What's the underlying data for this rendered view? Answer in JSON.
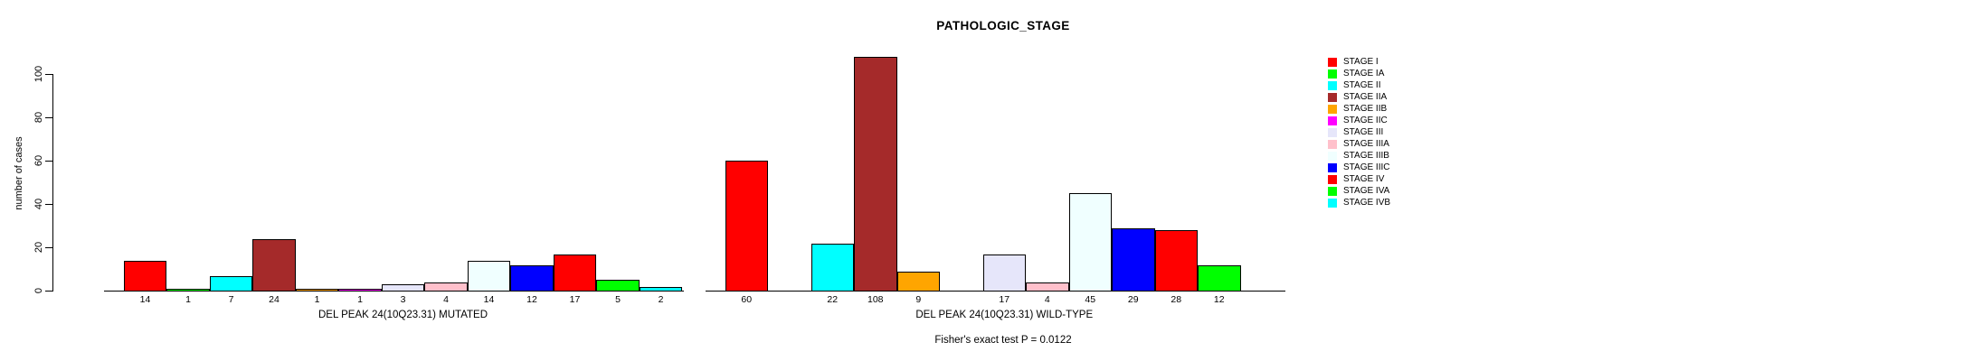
{
  "chart_data": {
    "type": "bar",
    "title": "PATHOLOGIC_STAGE",
    "ylabel": "number of cases",
    "ylim": [
      0,
      100
    ],
    "yticks": [
      0,
      20,
      40,
      60,
      80,
      100
    ],
    "annotation": "Fisher's exact test P = 0.0122",
    "grid": false,
    "legend_position": "right",
    "bar_value_labels_shown": true,
    "categories": [
      "STAGE I",
      "STAGE IA",
      "STAGE II",
      "STAGE IIA",
      "STAGE IIB",
      "STAGE IIC",
      "STAGE III",
      "STAGE IIIA",
      "STAGE IIIB",
      "STAGE IIIC",
      "STAGE IV",
      "STAGE IVA",
      "STAGE IVB"
    ],
    "colors": [
      "#FF0000",
      "#00FF00",
      "#00FFFF",
      "#A52A2A",
      "#FFA500",
      "#FF00FF",
      "#E6E6FA",
      "#FFC0CB",
      "#F0FFFF",
      "#0000FF",
      "#FF0000",
      "#00FF00",
      "#00FFFF"
    ],
    "series": [
      {
        "name": "DEL PEAK 24(10Q23.31) MUTATED",
        "values": [
          14,
          1,
          7,
          24,
          1,
          1,
          3,
          4,
          14,
          12,
          17,
          5,
          2
        ]
      },
      {
        "name": "DEL PEAK 24(10Q23.31) WILD-TYPE",
        "values": [
          60,
          0,
          22,
          108,
          9,
          0,
          17,
          4,
          45,
          29,
          28,
          12,
          0
        ]
      }
    ],
    "legend": [
      {
        "label": "STAGE I",
        "color": "#FF0000"
      },
      {
        "label": "STAGE IA",
        "color": "#00FF00"
      },
      {
        "label": "STAGE II",
        "color": "#00FFFF"
      },
      {
        "label": "STAGE IIA",
        "color": "#A52A2A"
      },
      {
        "label": "STAGE IIB",
        "color": "#FFA500"
      },
      {
        "label": "STAGE IIC",
        "color": "#FF00FF"
      },
      {
        "label": "STAGE III",
        "color": "#E6E6FA"
      },
      {
        "label": "STAGE IIIA",
        "color": "#FFC0CB"
      },
      {
        "label": "STAGE IIIB",
        "color": "#F0FFFF"
      },
      {
        "label": "STAGE IIIC",
        "color": "#0000FF"
      },
      {
        "label": "STAGE IV",
        "color": "#FF0000"
      },
      {
        "label": "STAGE IVA",
        "color": "#00FF00"
      },
      {
        "label": "STAGE IVB",
        "color": "#00FFFF"
      }
    ]
  }
}
